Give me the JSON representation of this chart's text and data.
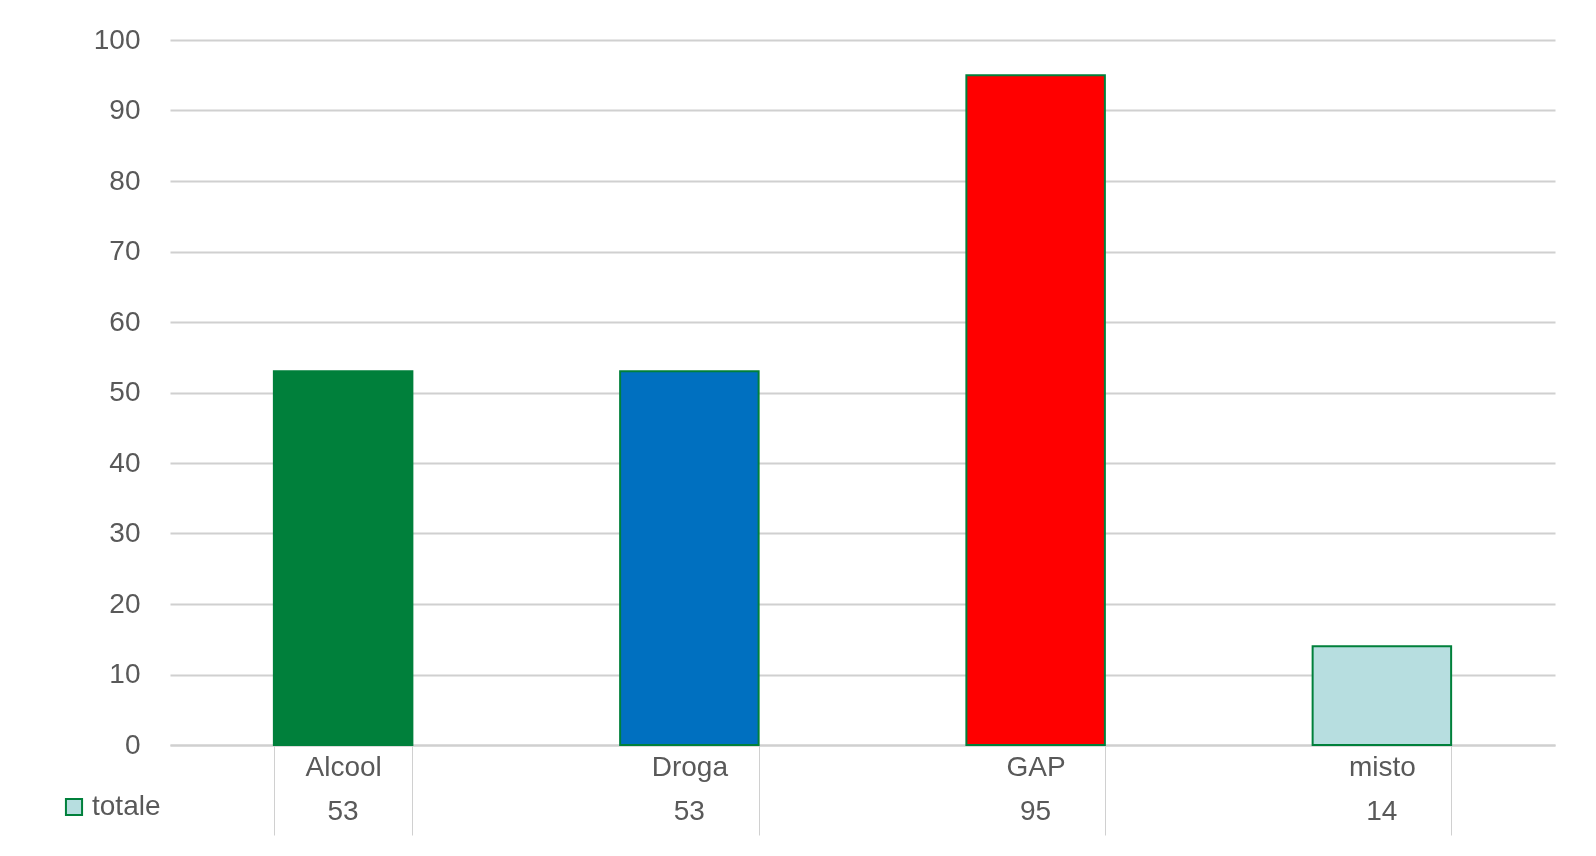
{
  "chart_data": {
    "type": "bar",
    "categories": [
      "Alcool",
      "Droga",
      "GAP",
      "misto"
    ],
    "series": [
      {
        "name": "totale",
        "color": "#b7dee0",
        "colors": [
          "#00803b",
          "#0070c0",
          "#ff0000",
          "#b7dee0"
        ],
        "values": [
          53,
          53,
          95,
          14
        ]
      }
    ],
    "ylim": [
      0,
      100
    ],
    "yticks": [
      0,
      10,
      20,
      30,
      40,
      50,
      60,
      70,
      80,
      90,
      100
    ],
    "grid": "y",
    "legend": "bottom left",
    "data_labels": true
  }
}
